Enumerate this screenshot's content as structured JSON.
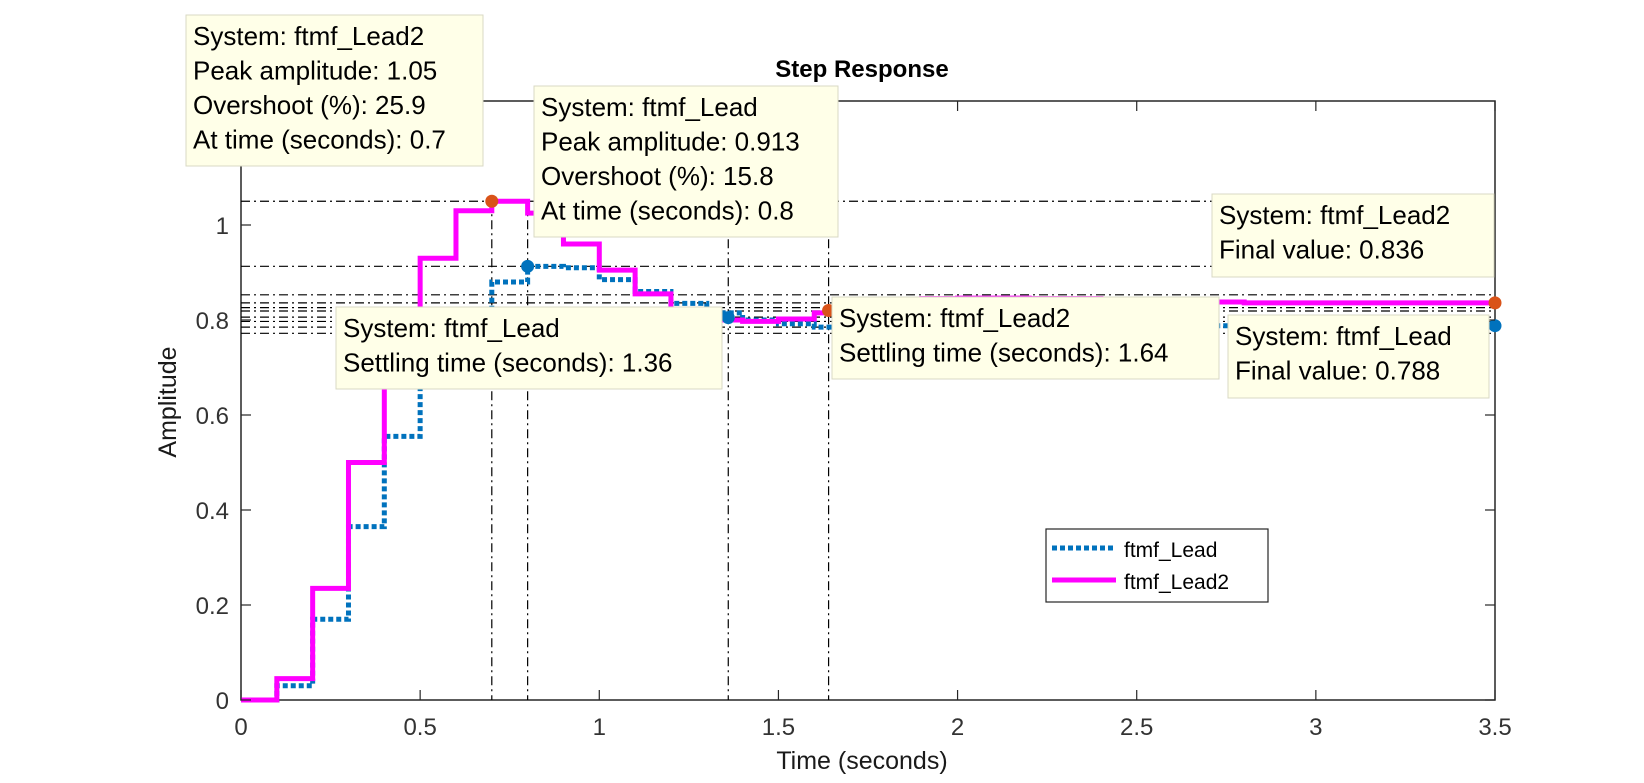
{
  "chart_data": {
    "type": "line",
    "title": "Step Response",
    "xlabel": "Time (seconds)",
    "ylabel": "Amplitude",
    "xlim": [
      0,
      3.5
    ],
    "ylim": [
      0,
      1.15
    ],
    "xticks": [
      0,
      0.5,
      1,
      1.5,
      2,
      2.5,
      3,
      3.5
    ],
    "xtick_labels": [
      "0",
      "0.5",
      "1",
      "1.5",
      "2",
      "2.5",
      "3",
      "3.5"
    ],
    "yticks": [
      0,
      0.2,
      0.4,
      0.6,
      0.8,
      1
    ],
    "ytick_labels": [
      "0",
      "0.2",
      "0.4",
      "0.6",
      "0.8",
      "1"
    ],
    "grid": false,
    "legend_position": "lower-right",
    "series": [
      {
        "name": "ftmf_Lead",
        "color": "#0072BD",
        "style": "dotted-staircase",
        "x": [
          0,
          0.1,
          0.2,
          0.3,
          0.4,
          0.5,
          0.6,
          0.7,
          0.8,
          0.9,
          1.0,
          1.1,
          1.2,
          1.3,
          1.4,
          1.5,
          1.6,
          1.7,
          1.8,
          1.9,
          2.0,
          2.2,
          2.4,
          2.6,
          2.8,
          3.0,
          3.2,
          3.4
        ],
        "y": [
          0,
          0.03,
          0.17,
          0.365,
          0.555,
          0.71,
          0.82,
          0.88,
          0.913,
          0.91,
          0.885,
          0.86,
          0.835,
          0.815,
          0.8,
          0.792,
          0.785,
          0.783,
          0.784,
          0.786,
          0.787,
          0.788,
          0.788,
          0.788,
          0.788,
          0.788,
          0.788,
          0.788
        ],
        "end_x": 3.5
      },
      {
        "name": "ftmf_Lead2",
        "color": "#FF00FF",
        "style": "solid-staircase",
        "x": [
          0,
          0.1,
          0.2,
          0.3,
          0.4,
          0.5,
          0.6,
          0.7,
          0.8,
          0.9,
          1.0,
          1.1,
          1.2,
          1.3,
          1.4,
          1.5,
          1.6,
          1.7,
          1.8,
          1.9,
          2.0,
          2.2,
          2.4,
          2.6,
          2.8,
          3.0,
          3.2,
          3.4
        ],
        "y": [
          0,
          0.045,
          0.235,
          0.5,
          0.73,
          0.93,
          1.03,
          1.05,
          1.025,
          0.96,
          0.905,
          0.855,
          0.815,
          0.8,
          0.797,
          0.802,
          0.815,
          0.828,
          0.84,
          0.845,
          0.846,
          0.845,
          0.842,
          0.838,
          0.836,
          0.836,
          0.836,
          0.836
        ],
        "end_x": 3.5
      }
    ],
    "markers": [
      {
        "series": "ftmf_Lead2",
        "kind": "peak",
        "x": 0.7,
        "y": 1.05,
        "color": "#D95319"
      },
      {
        "series": "ftmf_Lead",
        "kind": "peak",
        "x": 0.8,
        "y": 0.913,
        "color": "#0072BD"
      },
      {
        "series": "ftmf_Lead",
        "kind": "settling",
        "x": 1.36,
        "y": 0.805,
        "color": "#0072BD"
      },
      {
        "series": "ftmf_Lead2",
        "kind": "settling",
        "x": 1.64,
        "y": 0.82,
        "color": "#D95319"
      },
      {
        "series": "ftmf_Lead2",
        "kind": "final",
        "x": 3.5,
        "y": 0.836,
        "color": "#D95319"
      },
      {
        "series": "ftmf_Lead",
        "kind": "final",
        "x": 3.5,
        "y": 0.788,
        "color": "#0072BD"
      }
    ],
    "reference_lines_y": [
      1.05,
      0.913,
      0.853,
      0.836,
      0.826,
      0.819,
      0.806,
      0.797,
      0.785,
      0.772
    ],
    "reference_lines_x": [
      0.7,
      0.8,
      1.36,
      1.64
    ],
    "datatips": [
      {
        "lines": [
          "System: ftmf_Lead2",
          "Peak amplitude: 1.05",
          "Overshoot (%): 25.9",
          "At time (seconds): 0.7"
        ]
      },
      {
        "lines": [
          "System: ftmf_Lead",
          "Peak amplitude: 0.913",
          "Overshoot (%): 15.8",
          "At time (seconds): 0.8"
        ]
      },
      {
        "lines": [
          "System: ftmf_Lead2",
          "Final value: 0.836"
        ]
      },
      {
        "lines": [
          "System: ftmf_Lead",
          "Settling time (seconds): 1.36"
        ]
      },
      {
        "lines": [
          "System: ftmf_Lead2",
          "Settling time (seconds): 1.64"
        ]
      },
      {
        "lines": [
          "System: ftmf_Lead",
          "Final value: 0.788"
        ]
      }
    ]
  }
}
